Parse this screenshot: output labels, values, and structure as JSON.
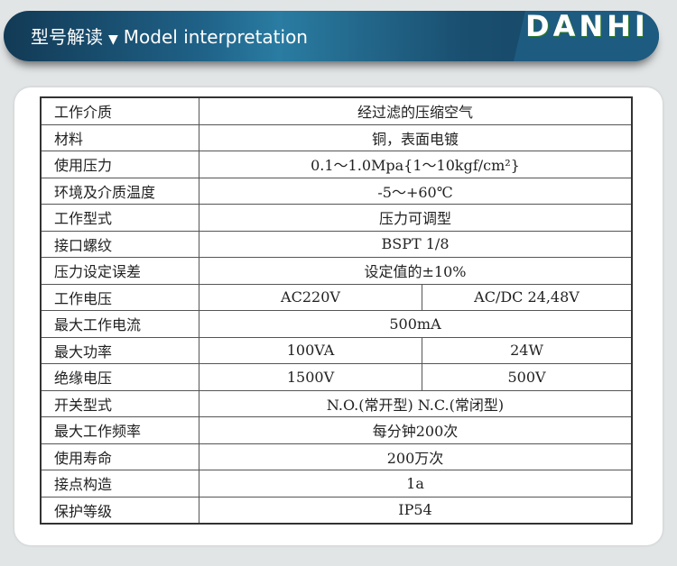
{
  "header": {
    "title_cn": "型号解读",
    "arrow": "▼",
    "title_en": "Model interpretation",
    "logo": "DANHI"
  },
  "rows": [
    {
      "label": "工作介质",
      "values": [
        "经过滤的压缩空气"
      ]
    },
    {
      "label": "材料",
      "values": [
        "铜，表面电镀"
      ]
    },
    {
      "label": "使用压力",
      "values": [
        "0.1～1.0Mpa{1～10kgf/cm²}"
      ]
    },
    {
      "label": "环境及介质温度",
      "values": [
        "-5～+60℃"
      ]
    },
    {
      "label": "工作型式",
      "values": [
        "压力可调型"
      ]
    },
    {
      "label": "接口螺纹",
      "values": [
        "BSPT 1/8"
      ]
    },
    {
      "label": "压力设定误差",
      "values": [
        "设定值的±10%"
      ]
    },
    {
      "label": "工作电压",
      "values": [
        "AC220V",
        "AC/DC 24,48V"
      ]
    },
    {
      "label": "最大工作电流",
      "values": [
        "500mA"
      ]
    },
    {
      "label": "最大功率",
      "values": [
        "100VA",
        "24W"
      ]
    },
    {
      "label": "绝缘电压",
      "values": [
        "1500V",
        "500V"
      ]
    },
    {
      "label": "开关型式",
      "values": [
        "N.O.(常开型)  N.C.(常闭型)"
      ]
    },
    {
      "label": "最大工作频率",
      "values": [
        "每分钟200次"
      ]
    },
    {
      "label": "使用寿命",
      "values": [
        "200万次"
      ]
    },
    {
      "label": "接点构造",
      "values": [
        "1a"
      ]
    },
    {
      "label": "保护等级",
      "values": [
        "IP54"
      ]
    }
  ]
}
